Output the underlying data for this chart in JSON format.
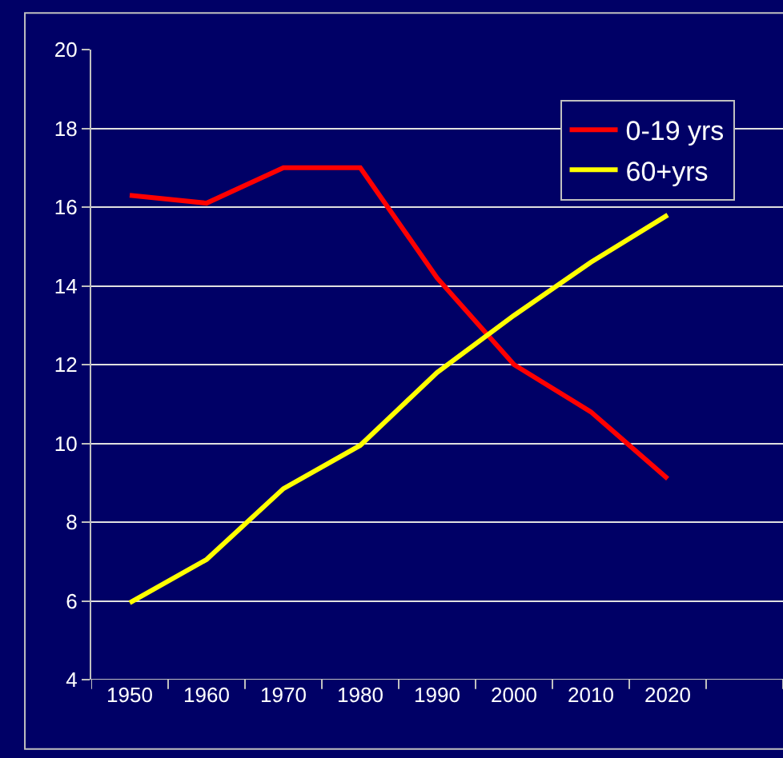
{
  "chart_data": {
    "type": "line",
    "categories": [
      "1950",
      "1960",
      "1970",
      "1980",
      "1990",
      "2000",
      "2010",
      "2020",
      null
    ],
    "series": [
      {
        "name": "0-19 yrs",
        "color": "#ff0000",
        "values": [
          16.3,
          16.1,
          17.0,
          17.0,
          14.2,
          12.0,
          10.8,
          9.1,
          null
        ]
      },
      {
        "name": "60+yrs",
        "color": "#ffff00",
        "values": [
          5.95,
          7.05,
          8.85,
          9.95,
          11.8,
          13.25,
          14.6,
          15.8,
          null
        ]
      }
    ],
    "ylim": [
      4,
      20
    ],
    "yticks": [
      4,
      6,
      8,
      10,
      12,
      14,
      16,
      18,
      20
    ],
    "grid": "y",
    "legend": "top right",
    "marker": "none",
    "line_style": "solid"
  }
}
